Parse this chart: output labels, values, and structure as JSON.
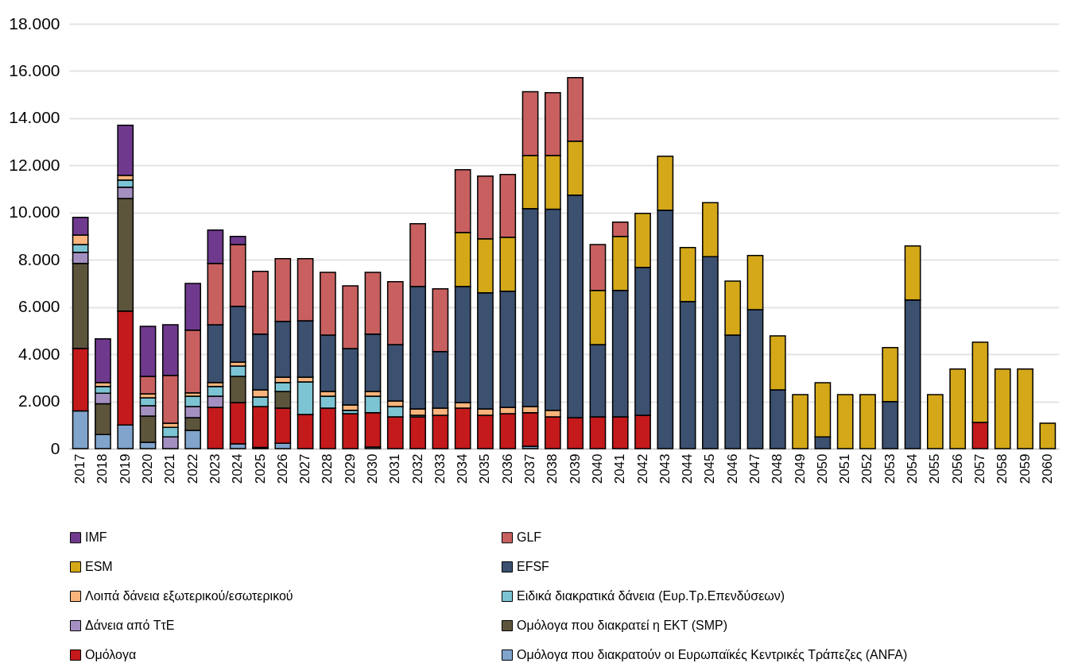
{
  "chart_data": {
    "type": "bar",
    "stacked": true,
    "legend": "bottom",
    "grid": "y",
    "categories": [
      "2017",
      "2018",
      "2019",
      "2020",
      "2021",
      "2022",
      "2023",
      "2024",
      "2025",
      "2026",
      "2027",
      "2028",
      "2029",
      "2030",
      "2031",
      "2032",
      "2033",
      "2034",
      "2035",
      "2036",
      "2037",
      "2038",
      "2039",
      "2040",
      "2041",
      "2042",
      "2043",
      "2044",
      "2045",
      "2046",
      "2047",
      "2048",
      "2049",
      "2050",
      "2051",
      "2052",
      "2053",
      "2054",
      "2055",
      "2056",
      "2057",
      "2058",
      "2059",
      "2060"
    ],
    "ylim": [
      0,
      18000
    ],
    "yticks": [
      0,
      {
        "value": 2000,
        "label": "2.000"
      },
      {
        "value": 4000,
        "label": "4.000"
      },
      {
        "value": 6000,
        "label": "6.000"
      },
      {
        "value": 8000,
        "label": "8.000"
      },
      {
        "value": 10000,
        "label": "10.000"
      },
      {
        "value": 12000,
        "label": "12.000"
      },
      {
        "value": 14000,
        "label": "14.000"
      },
      {
        "value": 16000,
        "label": "16.000"
      },
      {
        "value": 18000,
        "label": "18.000"
      }
    ],
    "series": [
      {
        "name": "Ομόλογα που διακρατούν οι Ευρωπαϊκές Κεντρικές Τράπεζες (ANFA)",
        "color": "#80a4cc",
        "values": [
          1600,
          600,
          1000,
          270,
          null,
          770,
          null,
          200,
          50,
          230,
          null,
          null,
          null,
          70,
          null,
          null,
          null,
          null,
          null,
          null,
          100,
          null,
          null,
          null,
          null,
          null,
          null,
          null,
          null,
          null,
          null,
          null,
          null,
          null,
          null,
          null,
          null,
          null,
          null,
          null,
          null,
          null,
          null,
          null
        ]
      },
      {
        "name": "Ομόλογα",
        "color": "#c41a1c",
        "values": [
          2650,
          null,
          4830,
          null,
          null,
          null,
          1750,
          1750,
          1730,
          1490,
          1450,
          1720,
          1480,
          1450,
          1350,
          1350,
          1410,
          1720,
          1410,
          1480,
          1420,
          1350,
          1310,
          1350,
          1350,
          1410,
          null,
          null,
          null,
          null,
          null,
          null,
          null,
          null,
          null,
          null,
          null,
          null,
          null,
          null,
          1110,
          null,
          null,
          null
        ]
      },
      {
        "name": "Ομόλογα που διακρατεί η ΕΚΤ (SMP)",
        "color": "#5c553c",
        "values": [
          3600,
          1300,
          4770,
          1110,
          null,
          540,
          null,
          1110,
          null,
          700,
          null,
          null,
          null,
          null,
          null,
          null,
          null,
          null,
          null,
          null,
          null,
          null,
          null,
          null,
          null,
          null,
          null,
          null,
          null,
          null,
          null,
          null,
          null,
          null,
          null,
          null,
          null,
          null,
          null,
          null,
          null,
          null,
          null,
          null
        ]
      },
      {
        "name": "Δάνεια από ΤτΕ",
        "color": "#a490c0",
        "values": [
          470,
          450,
          480,
          440,
          500,
          470,
          470,
          null,
          null,
          null,
          null,
          null,
          null,
          null,
          null,
          null,
          null,
          null,
          null,
          null,
          null,
          null,
          null,
          null,
          null,
          null,
          null,
          null,
          null,
          null,
          null,
          null,
          null,
          null,
          null,
          null,
          null,
          null,
          null,
          null,
          null,
          null,
          null,
          null
        ]
      },
      {
        "name": "Ειδικά διακρατικά δάνεια (Ευρ.Τρ.Επενδύσεων)",
        "color": "#7cc4d4",
        "values": [
          330,
          280,
          300,
          330,
          400,
          440,
          410,
          440,
          410,
          380,
          1380,
          500,
          140,
          700,
          430,
          60,
          null,
          null,
          null,
          null,
          null,
          null,
          null,
          null,
          null,
          null,
          null,
          null,
          null,
          null,
          null,
          null,
          null,
          null,
          null,
          null,
          null,
          null,
          null,
          null,
          null,
          null,
          null,
          null
        ]
      },
      {
        "name": "Λοιπά δάνεια εξωτερικού/εσωτερικού",
        "color": "#f8b47c",
        "values": [
          400,
          170,
          200,
          170,
          180,
          140,
          170,
          170,
          300,
          230,
          200,
          200,
          230,
          200,
          240,
          270,
          310,
          230,
          270,
          270,
          260,
          270,
          null,
          null,
          null,
          null,
          null,
          null,
          null,
          null,
          null,
          null,
          null,
          null,
          null,
          null,
          null,
          null,
          null,
          null,
          null,
          null,
          null,
          null
        ]
      },
      {
        "name": "EFSF",
        "color": "#3c5070",
        "values": [
          null,
          null,
          null,
          null,
          null,
          null,
          2450,
          2360,
          2360,
          2360,
          2390,
          2390,
          2390,
          2430,
          2390,
          5190,
          2390,
          4920,
          4920,
          4920,
          8390,
          8520,
          9430,
          3060,
          5350,
          6270,
          10100,
          6230,
          8130,
          4810,
          5890,
          2490,
          null,
          500,
          null,
          null,
          1990,
          6300,
          null,
          null,
          null,
          null,
          null,
          null
        ]
      },
      {
        "name": "ESM",
        "color": "#d4a818",
        "values": [
          null,
          null,
          null,
          null,
          null,
          null,
          null,
          null,
          null,
          null,
          null,
          null,
          null,
          null,
          null,
          null,
          null,
          2290,
          2290,
          2290,
          2250,
          2280,
          2290,
          2290,
          2290,
          2290,
          2290,
          2290,
          2290,
          2290,
          2290,
          2290,
          2290,
          2290,
          2290,
          2290,
          2290,
          2290,
          2290,
          3370,
          3400,
          3370,
          3370,
          1080
        ]
      },
      {
        "name": "GLF",
        "color": "#c86060",
        "values": [
          null,
          null,
          null,
          740,
          2020,
          2660,
          2600,
          2620,
          2660,
          2660,
          2630,
          2660,
          2660,
          2620,
          2660,
          2660,
          2660,
          2660,
          2660,
          2660,
          2700,
          2660,
          2690,
          1950,
          610,
          null,
          null,
          null,
          null,
          null,
          null,
          null,
          null,
          null,
          null,
          null,
          null,
          null,
          null,
          null,
          null,
          null,
          null,
          null
        ]
      },
      {
        "name": "IMF",
        "color": "#6f3a8e",
        "values": [
          750,
          1850,
          2120,
          2120,
          2150,
          1980,
          1410,
          340,
          null,
          null,
          null,
          null,
          null,
          null,
          null,
          null,
          null,
          null,
          null,
          null,
          null,
          null,
          null,
          null,
          null,
          null,
          null,
          null,
          null,
          null,
          null,
          null,
          null,
          null,
          null,
          null,
          null,
          null,
          null,
          null,
          null,
          null,
          null,
          null
        ]
      }
    ]
  }
}
